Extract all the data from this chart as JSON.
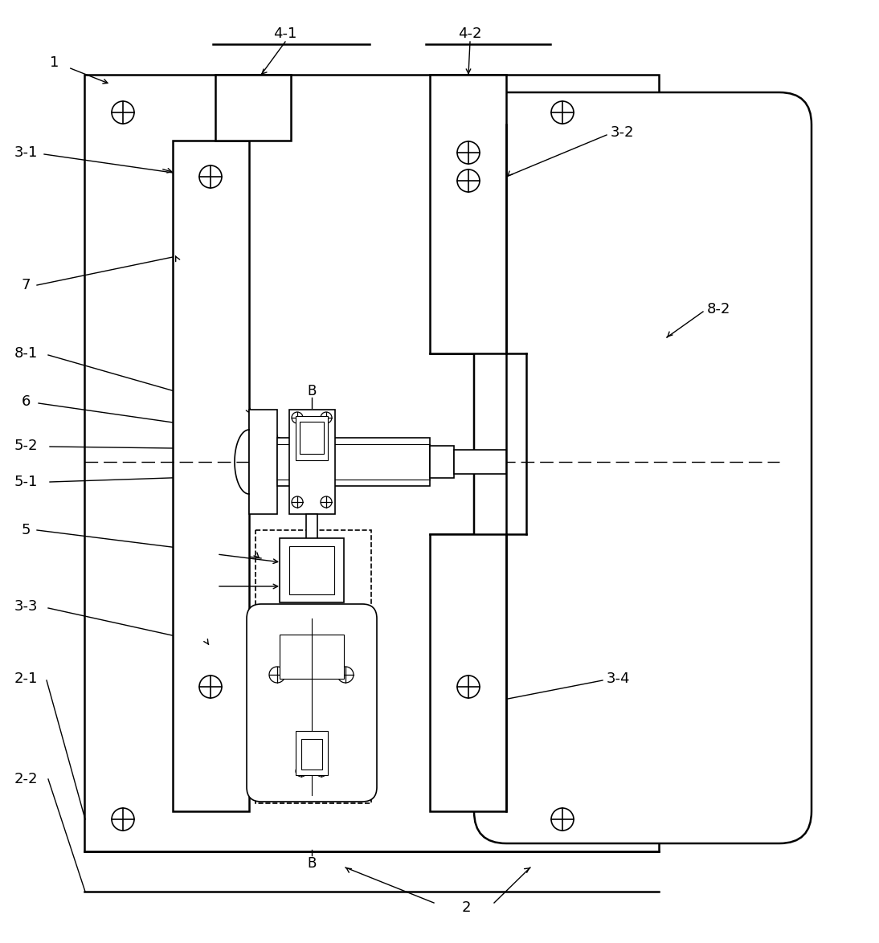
{
  "bg_color": "#ffffff",
  "line_color": "#000000",
  "figsize": [
    10.94,
    11.74
  ],
  "dpi": 100
}
